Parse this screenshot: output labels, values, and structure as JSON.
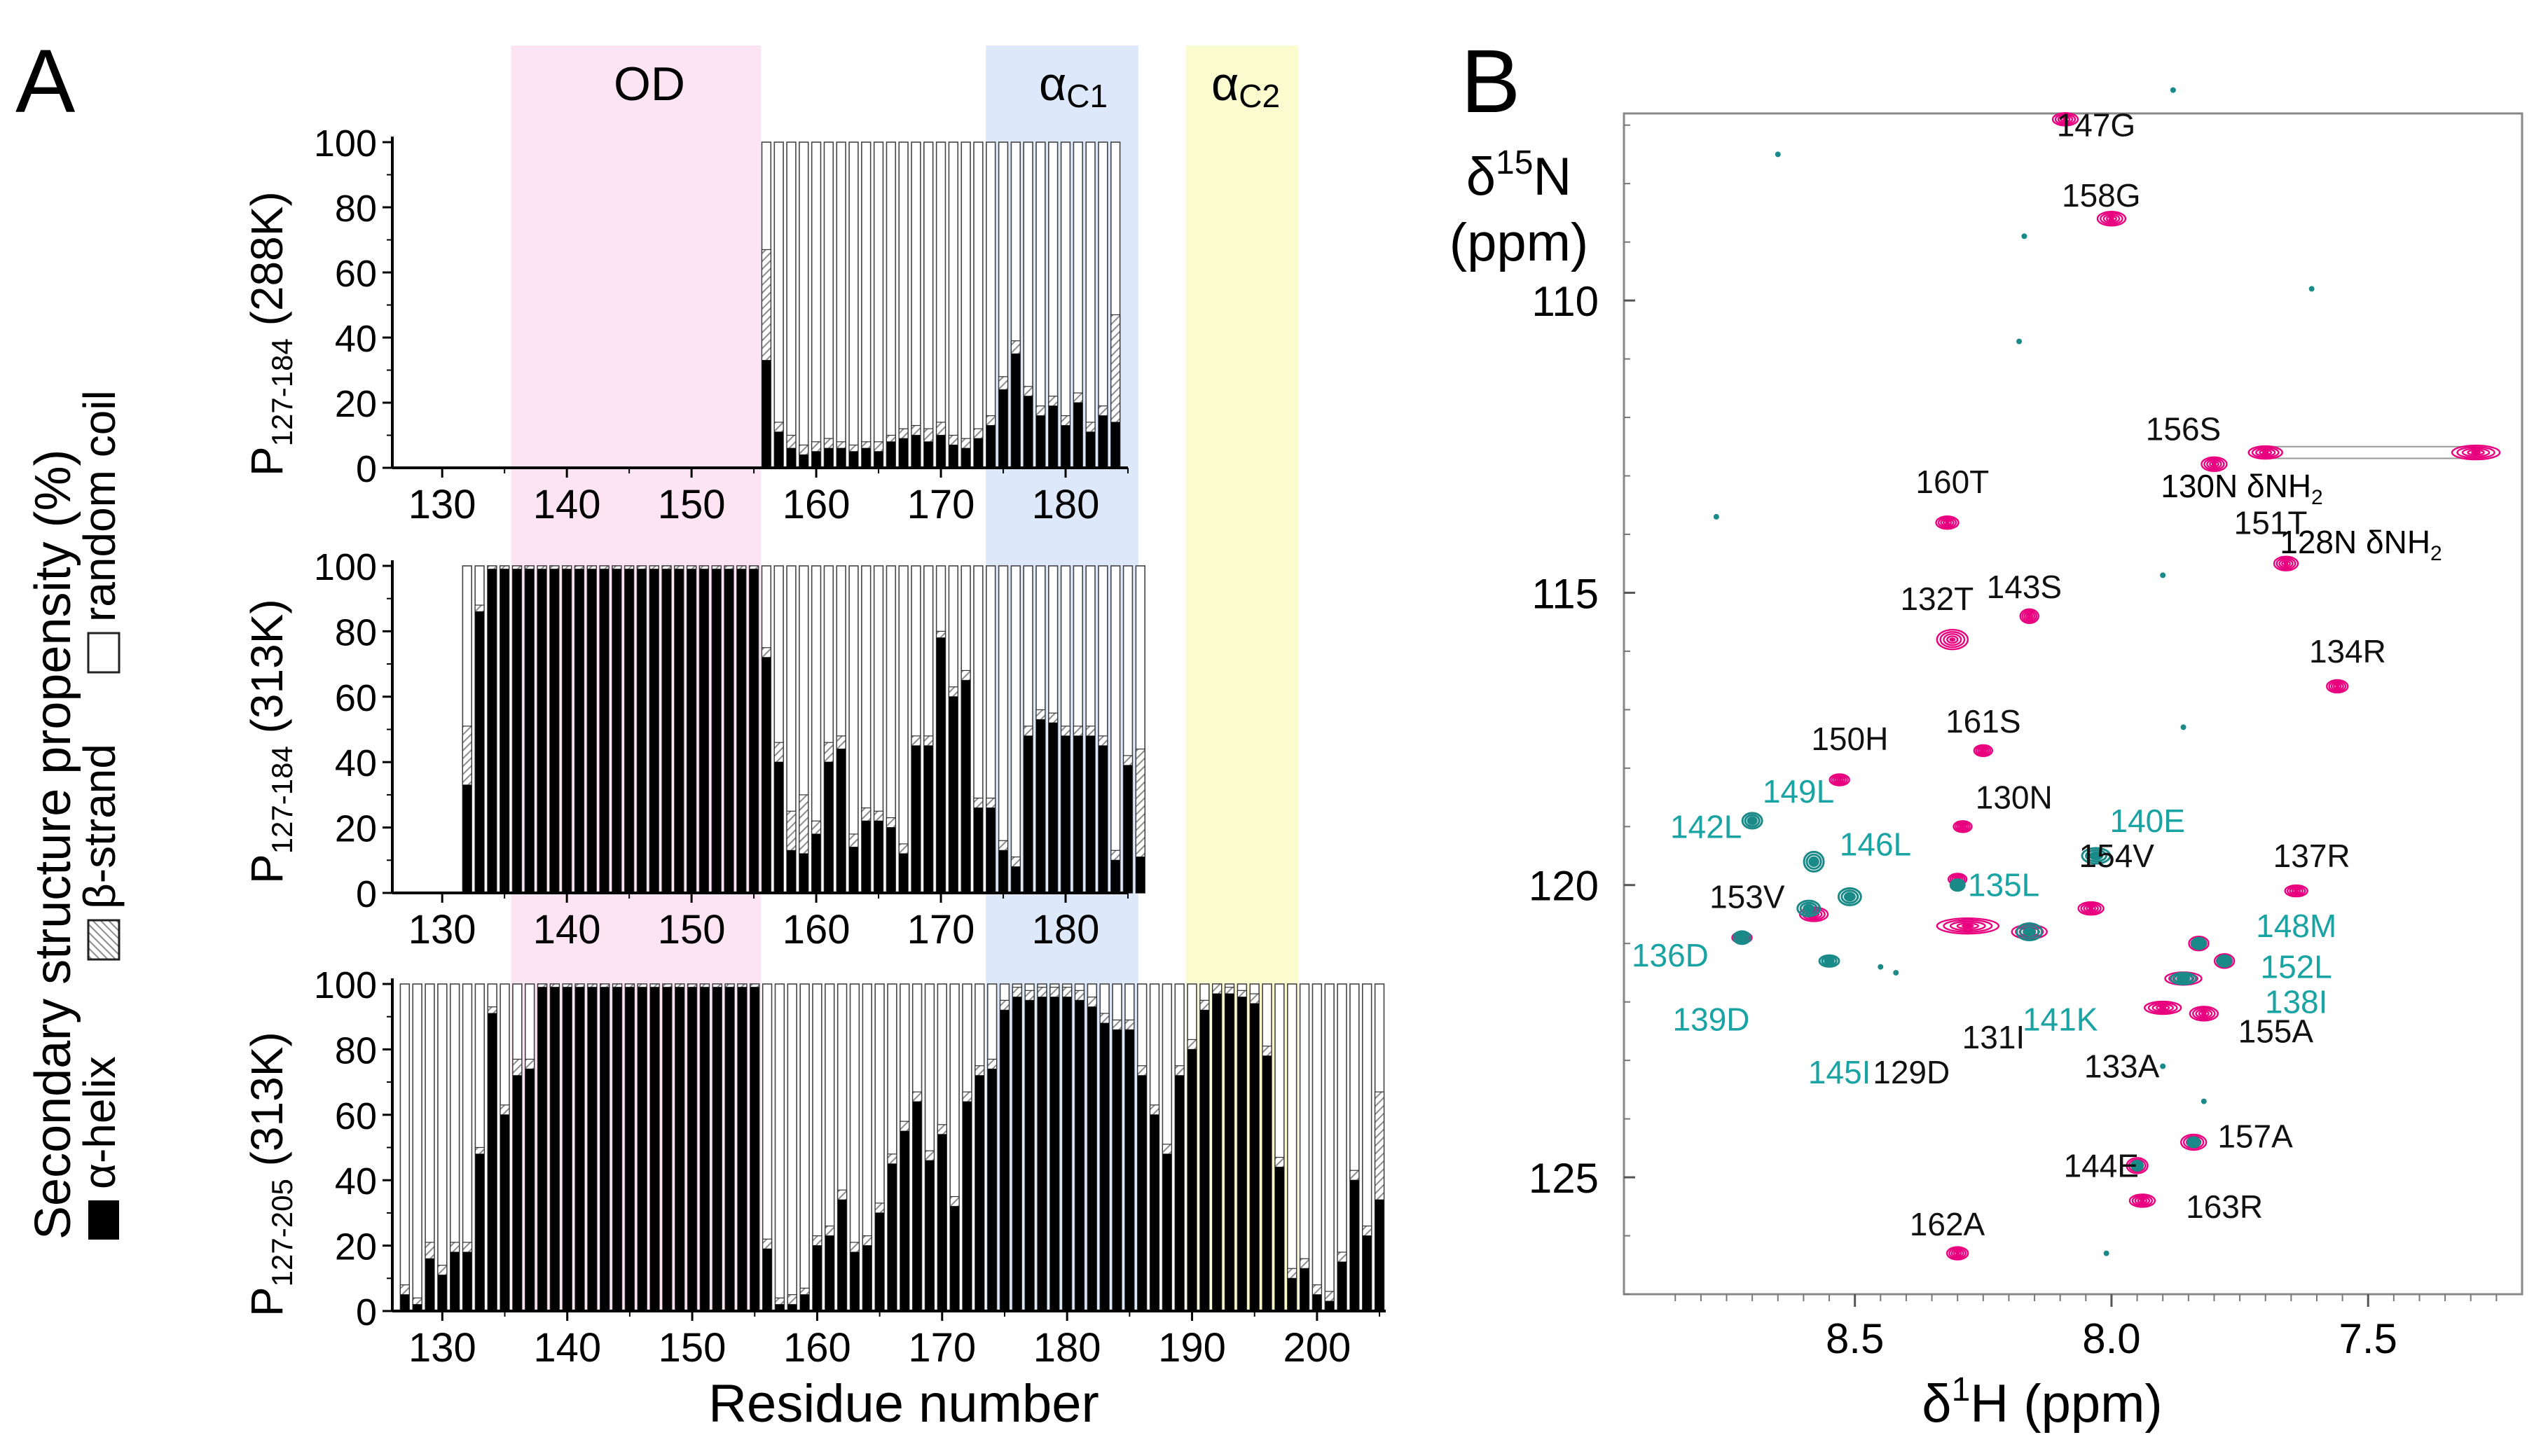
{
  "panel_a_label": "A",
  "panel_b_label": "B",
  "colors": {
    "alpha": "#000000",
    "beta_hatch": "#8c8c8c",
    "coil_edge": "#444444",
    "od_band": "#fde4f2",
    "ac1_band": "#dde9fb",
    "ac2_band": "#fbfbd0",
    "magenta": "#e8007f",
    "teal": "#1a8a88",
    "teal_label": "#1aa3a3"
  },
  "legend": {
    "ylabel": "Secondary structure propensity (%)",
    "alpha_label": "α-helix",
    "beta_label": "β-strand",
    "coil_label": "random coil"
  },
  "regions": {
    "od": "OD",
    "ac1": "α",
    "ac1_sub": "C1",
    "ac2": "α",
    "ac2_sub": "C2"
  },
  "panel_a_xlabel": "Residue number",
  "panel_b": {
    "ylabel_line1": "δ",
    "ylabel_sup": "15",
    "ylabel_after": "N",
    "ylabel_line2": "(ppm)",
    "xlabel_pre": "δ",
    "xlabel_sup": "1",
    "xlabel_post": "H (ppm)"
  },
  "chart_data": [
    {
      "type": "bar",
      "stacked": true,
      "title_main": "P",
      "title_sub": "127-184",
      "title_tail": " (288K)",
      "xlim": [
        126,
        185
      ],
      "ylim": [
        0,
        100
      ],
      "xticks": [
        130,
        140,
        150,
        160,
        170,
        180
      ],
      "yticks": [
        0,
        20,
        40,
        60,
        80,
        100
      ],
      "start": 156,
      "helix": [
        33,
        11,
        6,
        4,
        5,
        6,
        6,
        5,
        6,
        5,
        8,
        9,
        10,
        8,
        10,
        7,
        6,
        9,
        13,
        24,
        35,
        22,
        16,
        19,
        13,
        20,
        11,
        16,
        14
      ],
      "strand": [
        34,
        3,
        4,
        3,
        3,
        3,
        2,
        2,
        2,
        3,
        2,
        3,
        3,
        4,
        4,
        3,
        3,
        3,
        3,
        4,
        4,
        3,
        3,
        3,
        3,
        3,
        3,
        3,
        33
      ]
    },
    {
      "type": "bar",
      "stacked": true,
      "title_main": "P",
      "title_sub": "127-184",
      "title_tail": " (313K)",
      "xlim": [
        126,
        185
      ],
      "ylim": [
        0,
        100
      ],
      "xticks": [
        130,
        140,
        150,
        160,
        170,
        180
      ],
      "yticks": [
        0,
        20,
        40,
        60,
        80,
        100
      ],
      "start": 132,
      "helix": [
        33,
        86,
        99,
        99,
        99,
        99,
        99,
        99,
        99,
        99,
        99,
        99,
        99,
        99,
        99,
        99,
        99,
        99,
        99,
        99,
        99,
        99,
        99,
        99,
        72,
        40,
        13,
        12,
        18,
        40,
        44,
        14,
        22,
        22,
        20,
        12,
        45,
        45,
        78,
        60,
        65,
        26,
        26,
        13,
        8,
        48,
        53,
        52,
        48,
        48,
        48,
        45,
        10,
        39,
        11
      ],
      "strand": [
        18,
        2,
        1,
        1,
        1,
        1,
        1,
        1,
        1,
        1,
        1,
        1,
        1,
        1,
        1,
        1,
        1,
        1,
        1,
        1,
        1,
        1,
        1,
        1,
        3,
        6,
        12,
        18,
        4,
        6,
        4,
        4,
        4,
        3,
        3,
        3,
        3,
        3,
        2,
        3,
        3,
        3,
        3,
        3,
        3,
        3,
        3,
        3,
        3,
        3,
        3,
        3,
        3,
        3,
        33
      ]
    },
    {
      "type": "bar",
      "stacked": true,
      "title_main": "P",
      "title_sub": "127-205",
      "title_tail": " (313K)",
      "xlim": [
        126,
        205.5
      ],
      "ylim": [
        0,
        100
      ],
      "xticks": [
        130,
        140,
        150,
        160,
        170,
        180,
        190,
        200
      ],
      "yticks": [
        0,
        20,
        40,
        60,
        80,
        100
      ],
      "start": 127,
      "helix": [
        5,
        2,
        16,
        11,
        18,
        18,
        48,
        91,
        60,
        72,
        74,
        99,
        99,
        99,
        99,
        99,
        99,
        99,
        99,
        99,
        99,
        99,
        99,
        99,
        99,
        99,
        99,
        99,
        99,
        19,
        2,
        2,
        5,
        20,
        23,
        34,
        18,
        20,
        30,
        45,
        55,
        64,
        46,
        54,
        32,
        64,
        72,
        74,
        92,
        96,
        95,
        96,
        96,
        96,
        95,
        93,
        88,
        86,
        86,
        72,
        60,
        48,
        72,
        80,
        92,
        97,
        97,
        96,
        94,
        78,
        44,
        10,
        13,
        5,
        3,
        15,
        40,
        23,
        34
      ],
      "strand": [
        3,
        2,
        5,
        3,
        3,
        3,
        2,
        2,
        3,
        5,
        3,
        1,
        1,
        1,
        1,
        1,
        1,
        1,
        1,
        1,
        1,
        1,
        1,
        1,
        1,
        1,
        1,
        1,
        1,
        3,
        2,
        3,
        2,
        3,
        3,
        3,
        3,
        3,
        3,
        3,
        3,
        3,
        3,
        3,
        3,
        3,
        3,
        3,
        3,
        3,
        3,
        3,
        3,
        3,
        3,
        3,
        3,
        3,
        3,
        3,
        3,
        3,
        3,
        3,
        3,
        3,
        2,
        2,
        3,
        3,
        3,
        3,
        3,
        3,
        3,
        3,
        3,
        3,
        33
      ]
    },
    {
      "type": "scatter",
      "subtype": "hsqc",
      "xlim": [
        8.95,
        7.2
      ],
      "ylim": [
        127,
        106.8
      ],
      "xticks": [
        8.5,
        8.0,
        7.5
      ],
      "xtick_labels": [
        "8.5",
        "8.0",
        "7.5"
      ],
      "yticks": [
        110,
        115,
        120,
        125
      ],
      "yticks_labels": [
        "110",
        "115",
        "120",
        "125"
      ],
      "peaks_magenta": [
        {
          "h": 8.09,
          "n": 106.9,
          "rx": 18,
          "ry": 9
        },
        {
          "h": 8.0,
          "n": 108.6,
          "rx": 20,
          "ry": 10
        },
        {
          "h": 7.8,
          "n": 112.8,
          "rx": 18,
          "ry": 10
        },
        {
          "h": 7.7,
          "n": 112.6,
          "rx": 24,
          "ry": 9
        },
        {
          "h": 7.29,
          "n": 112.6,
          "rx": 34,
          "ry": 10
        },
        {
          "h": 8.32,
          "n": 113.8,
          "rx": 16,
          "ry": 9
        },
        {
          "h": 7.66,
          "n": 114.5,
          "rx": 17,
          "ry": 10
        },
        {
          "h": 8.31,
          "n": 115.8,
          "rx": 22,
          "ry": 14
        },
        {
          "h": 8.16,
          "n": 115.4,
          "rx": 13,
          "ry": 10
        },
        {
          "h": 7.56,
          "n": 116.6,
          "rx": 15,
          "ry": 9
        },
        {
          "h": 8.25,
          "n": 117.7,
          "rx": 13,
          "ry": 8
        },
        {
          "h": 8.53,
          "n": 118.2,
          "rx": 14,
          "ry": 8
        },
        {
          "h": 8.29,
          "n": 119.0,
          "rx": 13,
          "ry": 8
        },
        {
          "h": 8.04,
          "n": 120.4,
          "rx": 18,
          "ry": 9
        },
        {
          "h": 7.64,
          "n": 120.1,
          "rx": 16,
          "ry": 8
        },
        {
          "h": 8.3,
          "n": 119.9,
          "rx": 13,
          "ry": 8
        },
        {
          "h": 8.28,
          "n": 120.7,
          "rx": 44,
          "ry": 11
        },
        {
          "h": 8.16,
          "n": 120.8,
          "rx": 25,
          "ry": 10
        },
        {
          "h": 7.83,
          "n": 121.0,
          "rx": 14,
          "ry": 10
        },
        {
          "h": 7.78,
          "n": 121.3,
          "rx": 14,
          "ry": 10
        },
        {
          "h": 7.86,
          "n": 121.6,
          "rx": 26,
          "ry": 9
        },
        {
          "h": 7.9,
          "n": 122.1,
          "rx": 26,
          "ry": 9
        },
        {
          "h": 7.82,
          "n": 122.2,
          "rx": 20,
          "ry": 10
        },
        {
          "h": 7.84,
          "n": 124.4,
          "rx": 18,
          "ry": 11
        },
        {
          "h": 7.95,
          "n": 124.8,
          "rx": 15,
          "ry": 11
        },
        {
          "h": 7.94,
          "n": 125.4,
          "rx": 18,
          "ry": 9
        },
        {
          "h": 8.3,
          "n": 126.3,
          "rx": 15,
          "ry": 9
        },
        {
          "h": 8.72,
          "n": 120.9,
          "rx": 14,
          "ry": 8
        },
        {
          "h": 8.58,
          "n": 120.5,
          "rx": 20,
          "ry": 10
        }
      ],
      "peaks_teal": [
        {
          "h": 8.7,
          "n": 118.9,
          "rx": 14,
          "ry": 11
        },
        {
          "h": 8.58,
          "n": 119.6,
          "rx": 14,
          "ry": 14
        },
        {
          "h": 8.51,
          "n": 120.2,
          "rx": 16,
          "ry": 12
        },
        {
          "h": 8.59,
          "n": 120.4,
          "rx": 16,
          "ry": 11
        },
        {
          "h": 8.72,
          "n": 120.9,
          "rx": 12,
          "ry": 9
        },
        {
          "h": 8.55,
          "n": 121.3,
          "rx": 14,
          "ry": 8
        },
        {
          "h": 8.03,
          "n": 119.5,
          "rx": 20,
          "ry": 11
        },
        {
          "h": 8.3,
          "n": 120.0,
          "rx": 10,
          "ry": 8
        },
        {
          "h": 8.16,
          "n": 120.8,
          "rx": 18,
          "ry": 12
        },
        {
          "h": 7.83,
          "n": 121.0,
          "rx": 10,
          "ry": 8
        },
        {
          "h": 7.78,
          "n": 121.3,
          "rx": 10,
          "ry": 8
        },
        {
          "h": 7.86,
          "n": 121.6,
          "rx": 18,
          "ry": 8
        },
        {
          "h": 7.84,
          "n": 124.4,
          "rx": 9,
          "ry": 7
        },
        {
          "h": 7.95,
          "n": 124.8,
          "rx": 8,
          "ry": 7
        }
      ],
      "noise_teal": [
        {
          "h": 8.65,
          "n": 107.5
        },
        {
          "h": 8.17,
          "n": 108.9
        },
        {
          "h": 7.61,
          "n": 109.8
        },
        {
          "h": 8.18,
          "n": 110.7
        },
        {
          "h": 8.77,
          "n": 113.7
        },
        {
          "h": 7.9,
          "n": 114.7
        },
        {
          "h": 7.88,
          "n": 106.4
        },
        {
          "h": 7.9,
          "n": 123.1
        },
        {
          "h": 7.82,
          "n": 123.7
        },
        {
          "h": 8.01,
          "n": 126.3
        },
        {
          "h": 7.86,
          "n": 117.3
        },
        {
          "h": 8.45,
          "n": 121.4
        },
        {
          "h": 8.42,
          "n": 121.5
        }
      ],
      "labels": [
        {
          "text": "147G",
          "h": 8.03,
          "n": 107.0,
          "color": "black"
        },
        {
          "text": "158G",
          "h": 8.02,
          "n": 108.2,
          "color": "black"
        },
        {
          "text": "156S",
          "h": 7.86,
          "n": 112.2,
          "color": "black"
        },
        {
          "text": "160T",
          "h": 8.31,
          "n": 113.1,
          "color": "black"
        },
        {
          "text": "151T",
          "h": 7.69,
          "n": 113.8,
          "color": "black"
        },
        {
          "text": "143S",
          "h": 8.17,
          "n": 114.9,
          "color": "black"
        },
        {
          "text": "132T",
          "h": 8.34,
          "n": 115.1,
          "color": "black"
        },
        {
          "text": "134R",
          "h": 7.54,
          "n": 116.0,
          "color": "black"
        },
        {
          "text": "161S",
          "h": 8.25,
          "n": 117.2,
          "color": "black"
        },
        {
          "text": "150H",
          "h": 8.51,
          "n": 117.5,
          "color": "black"
        },
        {
          "text": "130N",
          "h": 8.19,
          "n": 118.5,
          "color": "black"
        },
        {
          "text": "154V",
          "h": 7.99,
          "n": 119.5,
          "color": "black"
        },
        {
          "text": "137R",
          "h": 7.61,
          "n": 119.5,
          "color": "black"
        },
        {
          "text": "153V",
          "h": 8.71,
          "n": 120.2,
          "color": "black"
        },
        {
          "text": "155A",
          "h": 7.68,
          "n": 122.5,
          "color": "black"
        },
        {
          "text": "133A",
          "h": 7.98,
          "n": 123.1,
          "color": "black"
        },
        {
          "text": "131I",
          "h": 8.23,
          "n": 122.6,
          "color": "black"
        },
        {
          "text": "129D",
          "h": 8.39,
          "n": 123.2,
          "color": "black"
        },
        {
          "text": "157A",
          "h": 7.72,
          "n": 124.3,
          "color": "black"
        },
        {
          "text": "144E",
          "h": 8.02,
          "n": 124.8,
          "color": "black"
        },
        {
          "text": "163R",
          "h": 7.78,
          "n": 125.5,
          "color": "black"
        },
        {
          "text": "162A",
          "h": 8.32,
          "n": 125.8,
          "color": "black"
        },
        {
          "text": "149L",
          "h": 8.61,
          "n": 118.4,
          "color": "teal"
        },
        {
          "text": "142L",
          "h": 8.79,
          "n": 119.0,
          "color": "teal"
        },
        {
          "text": "146L",
          "h": 8.46,
          "n": 119.3,
          "color": "teal"
        },
        {
          "text": "140E",
          "h": 7.93,
          "n": 118.9,
          "color": "teal"
        },
        {
          "text": "135L",
          "h": 8.21,
          "n": 120.0,
          "color": "teal"
        },
        {
          "text": "148M",
          "h": 7.64,
          "n": 120.7,
          "color": "teal"
        },
        {
          "text": "136D",
          "h": 8.86,
          "n": 121.2,
          "color": "teal"
        },
        {
          "text": "152L",
          "h": 7.64,
          "n": 121.4,
          "color": "teal"
        },
        {
          "text": "138I",
          "h": 7.64,
          "n": 122.0,
          "color": "teal"
        },
        {
          "text": "139D",
          "h": 8.78,
          "n": 122.3,
          "color": "teal"
        },
        {
          "text": "141K",
          "h": 8.1,
          "n": 122.3,
          "color": "teal"
        },
        {
          "text": "145I",
          "h": 8.53,
          "n": 123.2,
          "color": "teal"
        }
      ],
      "amide_labels": [
        {
          "main": "130N δNH",
          "sub": "2"
        },
        {
          "main": "128N δNH",
          "sub": "2"
        }
      ]
    }
  ]
}
